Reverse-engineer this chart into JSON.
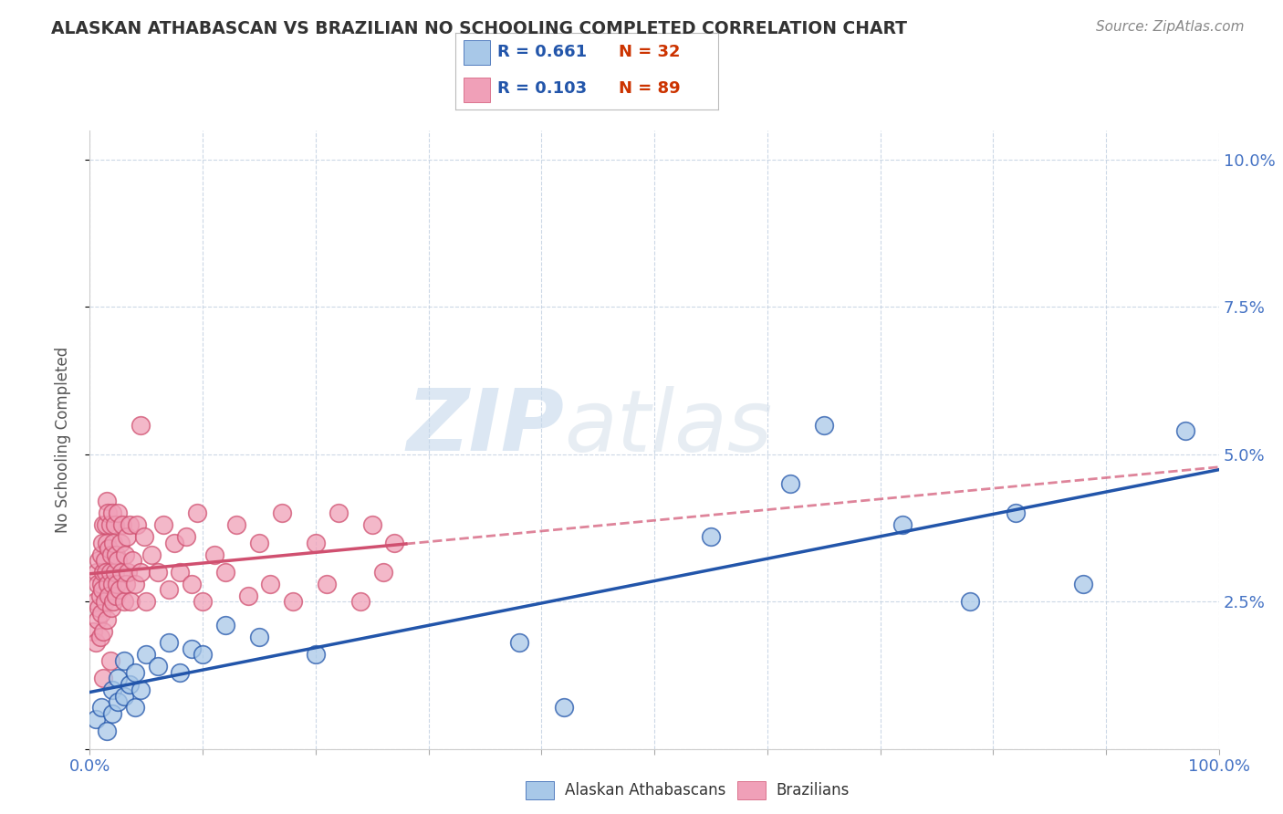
{
  "title": "ALASKAN ATHABASCAN VS BRAZILIAN NO SCHOOLING COMPLETED CORRELATION CHART",
  "source": "Source: ZipAtlas.com",
  "ylabel": "No Schooling Completed",
  "xlim": [
    0,
    1.0
  ],
  "ylim": [
    0,
    0.105
  ],
  "y_ticks": [
    0.0,
    0.025,
    0.05,
    0.075,
    0.1
  ],
  "y_tick_labels": [
    "",
    "2.5%",
    "5.0%",
    "7.5%",
    "10.0%"
  ],
  "legend_r_blue": "R = 0.661",
  "legend_n_blue": "N = 32",
  "legend_r_pink": "R = 0.103",
  "legend_n_pink": "N = 89",
  "blue_color": "#a8c8e8",
  "pink_color": "#f0a0b8",
  "blue_line_color": "#2255aa",
  "pink_line_color": "#d05070",
  "watermark_zip": "ZIP",
  "watermark_atlas": "atlas",
  "title_color": "#333333",
  "source_color": "#888888",
  "tick_color": "#4472c4",
  "blue_scatter_x": [
    0.005,
    0.01,
    0.015,
    0.02,
    0.02,
    0.025,
    0.025,
    0.03,
    0.03,
    0.035,
    0.04,
    0.04,
    0.045,
    0.05,
    0.06,
    0.07,
    0.08,
    0.09,
    0.1,
    0.12,
    0.15,
    0.2,
    0.38,
    0.42,
    0.55,
    0.62,
    0.65,
    0.72,
    0.78,
    0.82,
    0.88,
    0.97
  ],
  "blue_scatter_y": [
    0.005,
    0.007,
    0.003,
    0.01,
    0.006,
    0.008,
    0.012,
    0.009,
    0.015,
    0.011,
    0.013,
    0.007,
    0.01,
    0.016,
    0.014,
    0.018,
    0.013,
    0.017,
    0.016,
    0.021,
    0.019,
    0.016,
    0.018,
    0.007,
    0.036,
    0.045,
    0.055,
    0.038,
    0.025,
    0.04,
    0.028,
    0.054
  ],
  "pink_scatter_x": [
    0.003,
    0.005,
    0.005,
    0.006,
    0.007,
    0.007,
    0.008,
    0.008,
    0.009,
    0.009,
    0.01,
    0.01,
    0.01,
    0.011,
    0.011,
    0.012,
    0.012,
    0.012,
    0.013,
    0.013,
    0.014,
    0.014,
    0.015,
    0.015,
    0.015,
    0.016,
    0.016,
    0.017,
    0.017,
    0.018,
    0.018,
    0.019,
    0.019,
    0.02,
    0.02,
    0.021,
    0.021,
    0.022,
    0.022,
    0.023,
    0.023,
    0.024,
    0.025,
    0.025,
    0.026,
    0.027,
    0.028,
    0.029,
    0.03,
    0.031,
    0.032,
    0.033,
    0.034,
    0.035,
    0.036,
    0.038,
    0.04,
    0.042,
    0.045,
    0.048,
    0.05,
    0.055,
    0.06,
    0.065,
    0.07,
    0.075,
    0.08,
    0.085,
    0.09,
    0.095,
    0.1,
    0.11,
    0.12,
    0.13,
    0.14,
    0.15,
    0.16,
    0.17,
    0.18,
    0.2,
    0.21,
    0.22,
    0.24,
    0.25,
    0.26,
    0.27,
    0.045,
    0.018,
    0.012
  ],
  "pink_scatter_y": [
    0.02,
    0.018,
    0.025,
    0.03,
    0.022,
    0.028,
    0.024,
    0.032,
    0.019,
    0.026,
    0.028,
    0.023,
    0.033,
    0.027,
    0.035,
    0.02,
    0.03,
    0.038,
    0.025,
    0.032,
    0.03,
    0.038,
    0.022,
    0.035,
    0.042,
    0.028,
    0.04,
    0.026,
    0.034,
    0.03,
    0.038,
    0.024,
    0.033,
    0.028,
    0.04,
    0.025,
    0.035,
    0.03,
    0.038,
    0.026,
    0.033,
    0.028,
    0.032,
    0.04,
    0.027,
    0.035,
    0.03,
    0.038,
    0.025,
    0.033,
    0.028,
    0.036,
    0.03,
    0.038,
    0.025,
    0.032,
    0.028,
    0.038,
    0.03,
    0.036,
    0.025,
    0.033,
    0.03,
    0.038,
    0.027,
    0.035,
    0.03,
    0.036,
    0.028,
    0.04,
    0.025,
    0.033,
    0.03,
    0.038,
    0.026,
    0.035,
    0.028,
    0.04,
    0.025,
    0.035,
    0.028,
    0.04,
    0.025,
    0.038,
    0.03,
    0.035,
    0.055,
    0.015,
    0.012
  ]
}
